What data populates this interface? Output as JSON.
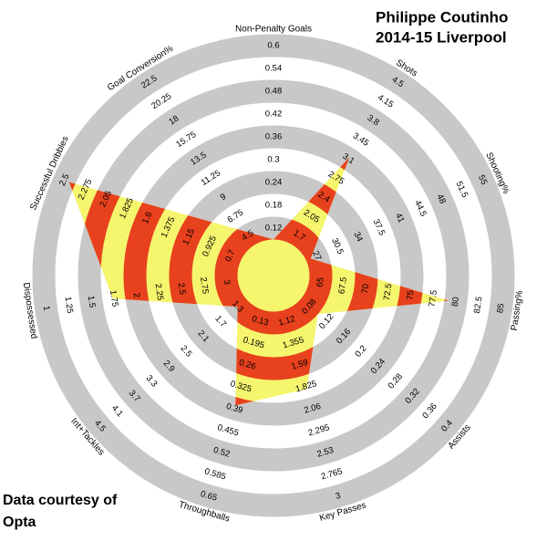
{
  "chart_data": {
    "type": "radar",
    "title": "Philippe Coutinho",
    "subtitle": "2014-15 Liverpool",
    "source": [
      "Data courtesy of",
      "Opta"
    ],
    "band_color": "#c8c8c8",
    "fill_colors": [
      "#f5f56e",
      "#e8411d"
    ],
    "categories": [
      "Non-Penalty Goals",
      "Shots",
      "Shooting%",
      "Passing%",
      "Assists",
      "Key Passes",
      "Throughballs",
      "Int+Tackles",
      "Dispossessed",
      "Successful Dribbles",
      "Goal Conversion%"
    ],
    "values": [
      0.09,
      3.13,
      26,
      79.2,
      0.1,
      1.85,
      0.38,
      1.3,
      1.74,
      2.45,
      5
    ],
    "axes": [
      {
        "lim": [
          0.06,
          0.6
        ],
        "ticks": [
          0.12,
          0.18,
          0.24,
          0.3,
          0.36,
          0.42,
          0.48,
          0.54,
          0.6
        ]
      },
      {
        "lim": [
          1.35,
          4.5
        ],
        "ticks": [
          1.7,
          2.05,
          2.4,
          2.75,
          3.1,
          3.45,
          3.8,
          4.15,
          4.5
        ]
      },
      {
        "lim": [
          23.5,
          55
        ],
        "ticks": [
          27,
          30.5,
          34,
          37.5,
          41,
          44.5,
          48,
          51.5,
          55
        ]
      },
      {
        "lim": [
          62.5,
          85
        ],
        "ticks": [
          65,
          67.5,
          70,
          72.5,
          75,
          77.5,
          80,
          82.5,
          85
        ]
      },
      {
        "lim": [
          0.04,
          0.4
        ],
        "ticks": [
          0.08,
          0.12,
          0.16,
          0.2,
          0.24,
          0.28,
          0.32,
          0.36,
          0.4
        ]
      },
      {
        "lim": [
          0.885,
          3
        ],
        "ticks": [
          1.12,
          1.355,
          1.59,
          1.825,
          2.06,
          2.295,
          2.53,
          2.765,
          3
        ]
      },
      {
        "lim": [
          0.065,
          0.65
        ],
        "ticks": [
          0.13,
          0.195,
          0.26,
          0.325,
          0.39,
          0.455,
          0.52,
          0.585,
          0.65
        ]
      },
      {
        "lim": [
          0.9,
          4.5
        ],
        "ticks": [
          1.3,
          1.7,
          2.1,
          2.5,
          2.9,
          3.3,
          3.7,
          4.1,
          4.5
        ]
      },
      {
        "lim": [
          3.25,
          1
        ],
        "ticks": [
          3,
          2.75,
          2.5,
          2.25,
          2,
          1.75,
          1.5,
          1.25,
          1
        ]
      },
      {
        "lim": [
          0.475,
          2.5
        ],
        "ticks": [
          0.7,
          0.925,
          1.15,
          1.375,
          1.6,
          1.825,
          2.05,
          2.275,
          2.5
        ]
      },
      {
        "lim": [
          2.25,
          22.5
        ],
        "ticks": [
          4.5,
          6.75,
          9,
          11.25,
          13.5,
          15.75,
          18,
          20.25,
          22.5
        ]
      }
    ]
  }
}
